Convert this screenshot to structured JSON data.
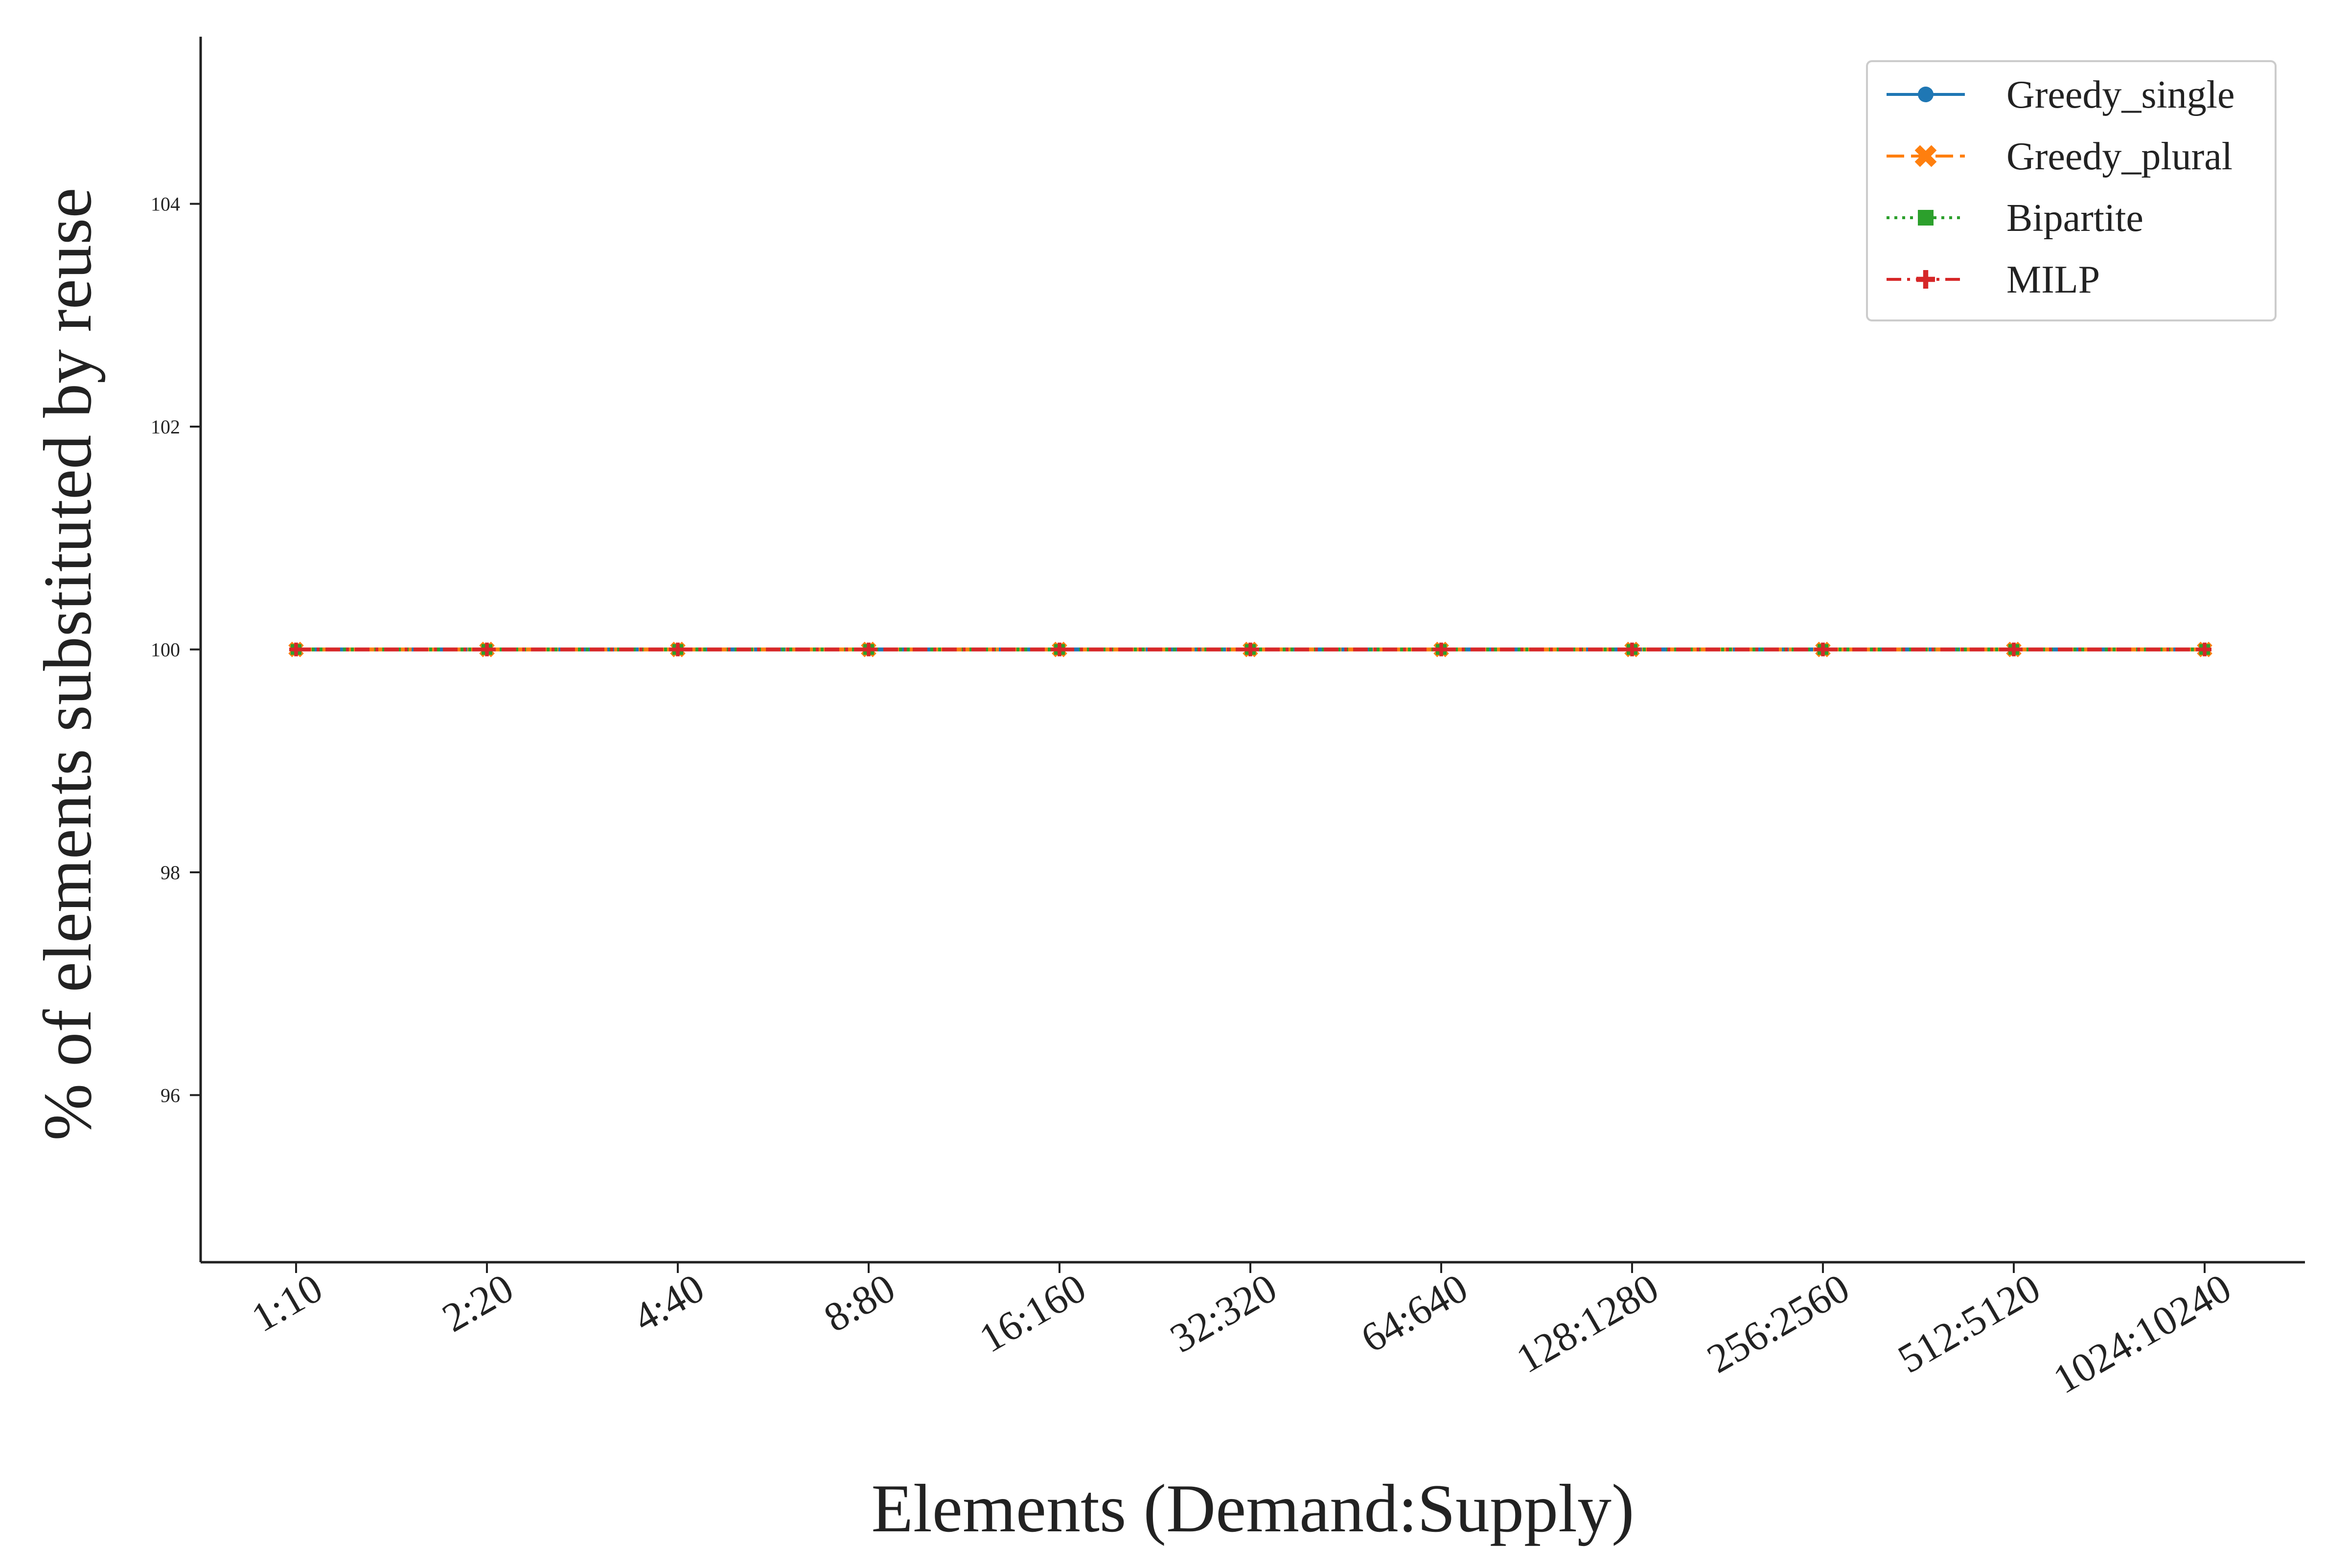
{
  "chart_data": {
    "type": "line",
    "title": "",
    "xlabel": "Elements (Demand:Supply)",
    "ylabel": "% of elements substituted by reuse",
    "categories": [
      "1:10",
      "2:20",
      "4:40",
      "8:80",
      "16:160",
      "32:320",
      "64:640",
      "128:1280",
      "256:2560",
      "512:5120",
      "1024:10240"
    ],
    "yticks": [
      96,
      98,
      100,
      102,
      104
    ],
    "ylim": [
      94.5,
      105.5
    ],
    "grid": false,
    "legend_position": "top-right",
    "series": [
      {
        "name": "Greedy_single",
        "color": "#1f77b4",
        "dash": "solid",
        "marker": "circle",
        "values": [
          100,
          100,
          100,
          100,
          100,
          100,
          100,
          100,
          100,
          100,
          100
        ]
      },
      {
        "name": "Greedy_plural",
        "color": "#ff7f0e",
        "dash": "dashed",
        "marker": "x",
        "values": [
          100,
          100,
          100,
          100,
          100,
          100,
          100,
          100,
          100,
          100,
          100
        ]
      },
      {
        "name": "Bipartite",
        "color": "#2ca02c",
        "dash": "dotted",
        "marker": "square",
        "values": [
          100,
          100,
          100,
          100,
          100,
          100,
          100,
          100,
          100,
          100,
          100
        ]
      },
      {
        "name": "MILP",
        "color": "#d62728",
        "dash": "dashdot",
        "marker": "plus",
        "values": [
          100,
          100,
          100,
          100,
          100,
          100,
          100,
          100,
          100,
          100,
          100
        ]
      }
    ]
  }
}
